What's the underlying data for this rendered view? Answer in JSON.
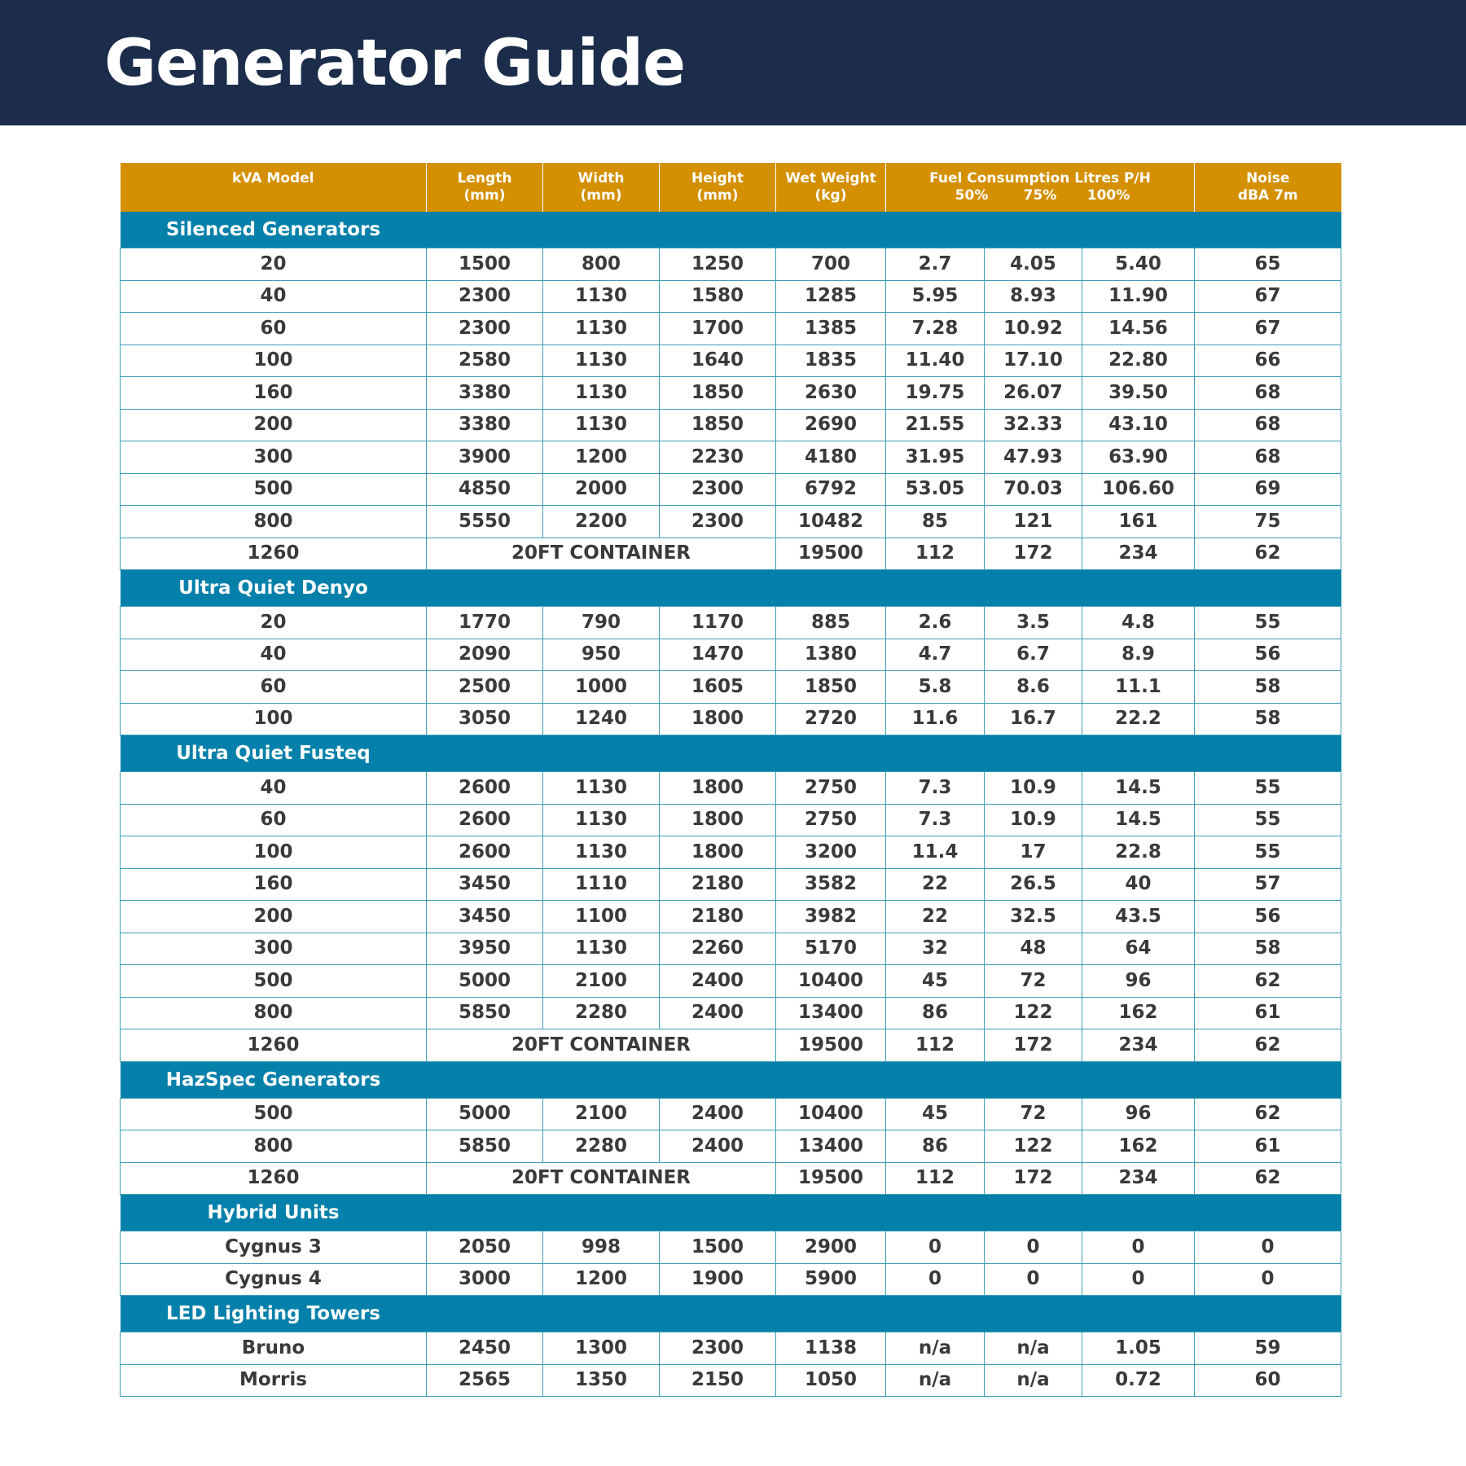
{
  "title": "Generator Guide",
  "colors": {
    "banner": "#1b2d4a",
    "header": "#d49000",
    "section": "#0480aa",
    "grid": "#3c9db5"
  },
  "header": {
    "model": "kVA Model",
    "length": [
      "Length",
      "(mm)"
    ],
    "width": [
      "Width",
      "(mm)"
    ],
    "height": [
      "Height",
      "(mm)"
    ],
    "weight": [
      "Wet Weight",
      "(kg)"
    ],
    "fuel": "Fuel Consumption Litres P/H",
    "fuel_sub": [
      "50%",
      "75%",
      "100%"
    ],
    "noise": [
      "Noise",
      "dBA 7m"
    ]
  },
  "sections": [
    {
      "title": "Silenced Generators",
      "rows": [
        [
          "20",
          "1500",
          "800",
          "1250",
          "700",
          "2.7",
          "4.05",
          "5.40",
          "65"
        ],
        [
          "40",
          "2300",
          "1130",
          "1580",
          "1285",
          "5.95",
          "8.93",
          "11.90",
          "67"
        ],
        [
          "60",
          "2300",
          "1130",
          "1700",
          "1385",
          "7.28",
          "10.92",
          "14.56",
          "67"
        ],
        [
          "100",
          "2580",
          "1130",
          "1640",
          "1835",
          "11.40",
          "17.10",
          "22.80",
          "66"
        ],
        [
          "160",
          "3380",
          "1130",
          "1850",
          "2630",
          "19.75",
          "26.07",
          "39.50",
          "68"
        ],
        [
          "200",
          "3380",
          "1130",
          "1850",
          "2690",
          "21.55",
          "32.33",
          "43.10",
          "68"
        ],
        [
          "300",
          "3900",
          "1200",
          "2230",
          "4180",
          "31.95",
          "47.93",
          "63.90",
          "68"
        ],
        [
          "500",
          "4850",
          "2000",
          "2300",
          "6792",
          "53.05",
          "70.03",
          "106.60",
          "69"
        ],
        [
          "800",
          "5550",
          "2200",
          "2300",
          "10482",
          "85",
          "121",
          "161",
          "75"
        ],
        [
          "1260",
          "20FT CONTAINER",
          "19500",
          "112",
          "172",
          "234",
          "62"
        ]
      ]
    },
    {
      "title": "Ultra Quiet Denyo",
      "rows": [
        [
          "20",
          "1770",
          "790",
          "1170",
          "885",
          "2.6",
          "3.5",
          "4.8",
          "55"
        ],
        [
          "40",
          "2090",
          "950",
          "1470",
          "1380",
          "4.7",
          "6.7",
          "8.9",
          "56"
        ],
        [
          "60",
          "2500",
          "1000",
          "1605",
          "1850",
          "5.8",
          "8.6",
          "11.1",
          "58"
        ],
        [
          "100",
          "3050",
          "1240",
          "1800",
          "2720",
          "11.6",
          "16.7",
          "22.2",
          "58"
        ]
      ]
    },
    {
      "title": "Ultra Quiet Fusteq",
      "rows": [
        [
          "40",
          "2600",
          "1130",
          "1800",
          "2750",
          "7.3",
          "10.9",
          "14.5",
          "55"
        ],
        [
          "60",
          "2600",
          "1130",
          "1800",
          "2750",
          "7.3",
          "10.9",
          "14.5",
          "55"
        ],
        [
          "100",
          "2600",
          "1130",
          "1800",
          "3200",
          "11.4",
          "17",
          "22.8",
          "55"
        ],
        [
          "160",
          "3450",
          "1110",
          "2180",
          "3582",
          "22",
          "26.5",
          "40",
          "57"
        ],
        [
          "200",
          "3450",
          "1100",
          "2180",
          "3982",
          "22",
          "32.5",
          "43.5",
          "56"
        ],
        [
          "300",
          "3950",
          "1130",
          "2260",
          "5170",
          "32",
          "48",
          "64",
          "58"
        ],
        [
          "500",
          "5000",
          "2100",
          "2400",
          "10400",
          "45",
          "72",
          "96",
          "62"
        ],
        [
          "800",
          "5850",
          "2280",
          "2400",
          "13400",
          "86",
          "122",
          "162",
          "61"
        ],
        [
          "1260",
          "20FT CONTAINER",
          "19500",
          "112",
          "172",
          "234",
          "62"
        ]
      ]
    },
    {
      "title": "HazSpec Generators",
      "rows": [
        [
          "500",
          "5000",
          "2100",
          "2400",
          "10400",
          "45",
          "72",
          "96",
          "62"
        ],
        [
          "800",
          "5850",
          "2280",
          "2400",
          "13400",
          "86",
          "122",
          "162",
          "61"
        ],
        [
          "1260",
          "20FT CONTAINER",
          "19500",
          "112",
          "172",
          "234",
          "62"
        ]
      ]
    },
    {
      "title": "Hybrid Units",
      "rows": [
        [
          "Cygnus 3",
          "2050",
          "998",
          "1500",
          "2900",
          "0",
          "0",
          "0",
          "0"
        ],
        [
          "Cygnus 4",
          "3000",
          "1200",
          "1900",
          "5900",
          "0",
          "0",
          "0",
          "0"
        ]
      ]
    },
    {
      "title": "LED Lighting Towers",
      "rows": [
        [
          "Bruno",
          "2450",
          "1300",
          "2300",
          "1138",
          "n/a",
          "n/a",
          "1.05",
          "59"
        ],
        [
          "Morris",
          "2565",
          "1350",
          "2150",
          "1050",
          "n/a",
          "n/a",
          "0.72",
          "60"
        ]
      ]
    }
  ]
}
